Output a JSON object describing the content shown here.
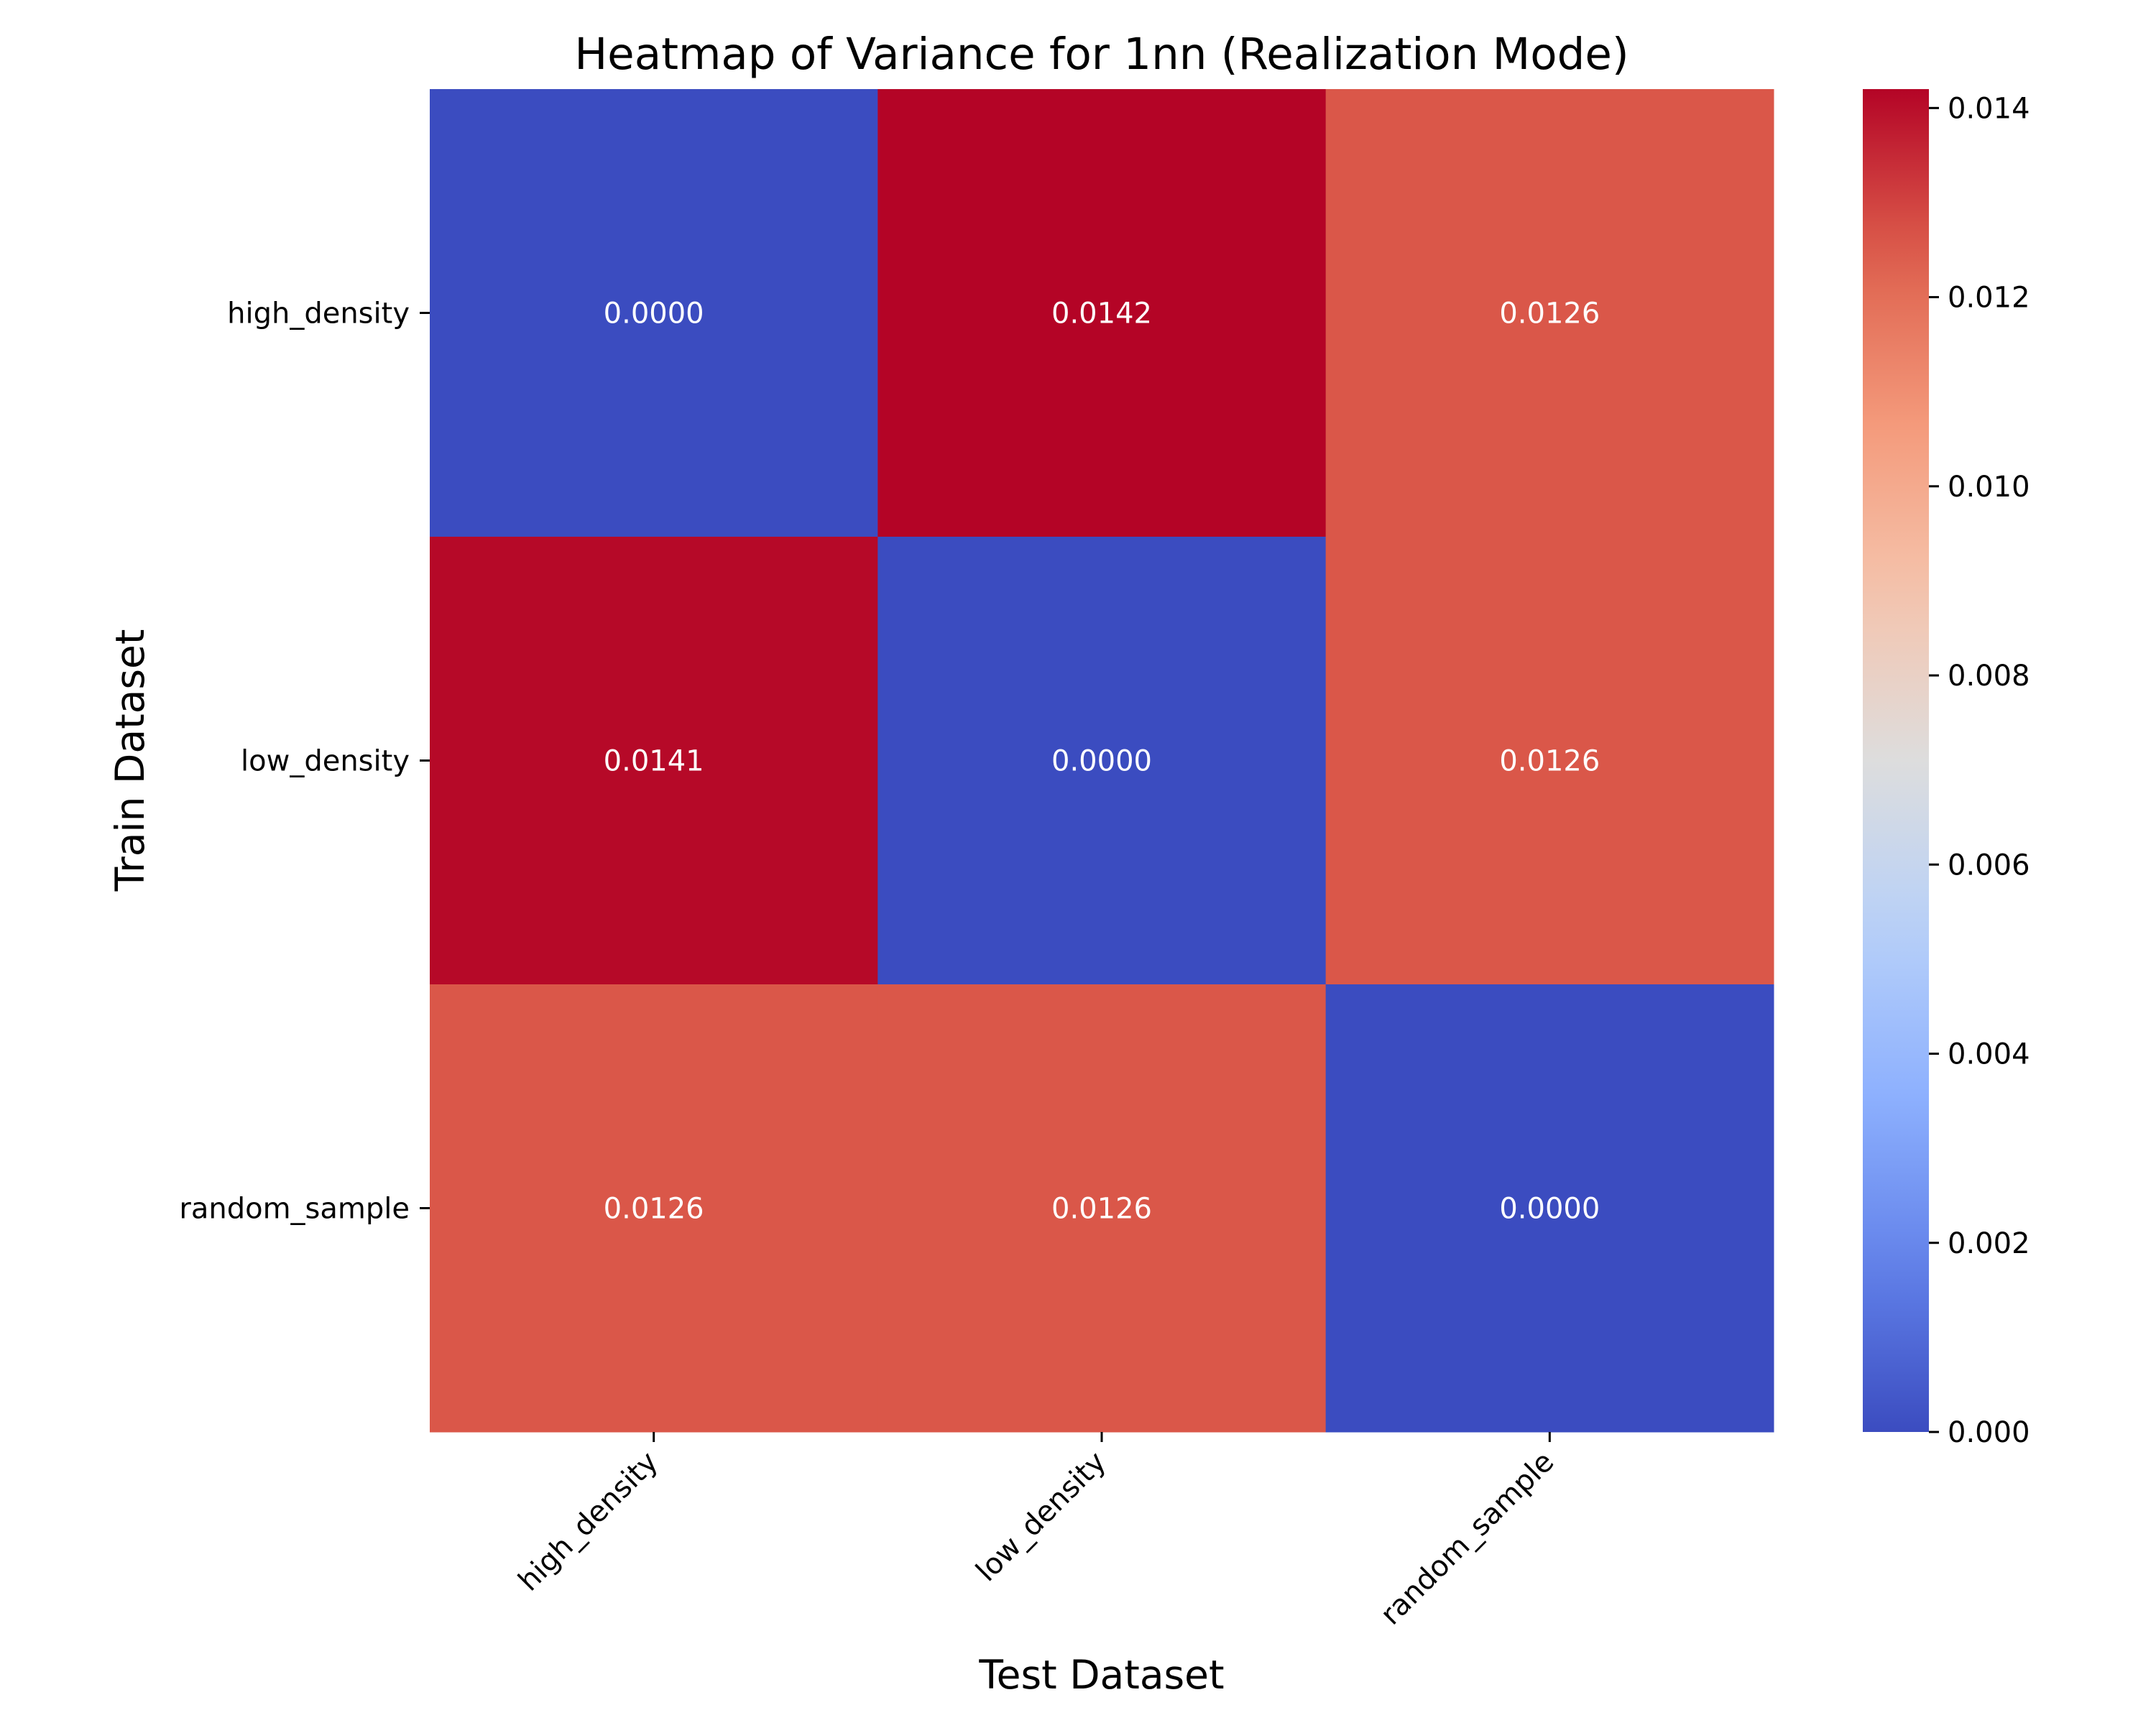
{
  "chart_data": {
    "type": "heatmap",
    "title": "Heatmap of Variance for 1nn (Realization Mode)",
    "xlabel": "Test Dataset",
    "ylabel": "Train Dataset",
    "x_categories": [
      "high_density",
      "low_density",
      "random_sample"
    ],
    "y_categories": [
      "high_density",
      "low_density",
      "random_sample"
    ],
    "values": [
      [
        0.0,
        0.0142,
        0.0126
      ],
      [
        0.0141,
        0.0,
        0.0126
      ],
      [
        0.0126,
        0.0126,
        0.0
      ]
    ],
    "cell_labels": [
      [
        "0.0000",
        "0.0142",
        "0.0126"
      ],
      [
        "0.0141",
        "0.0000",
        "0.0126"
      ],
      [
        "0.0126",
        "0.0126",
        "0.0000"
      ]
    ],
    "colormap": "coolwarm",
    "colorbar": {
      "vmin": 0.0,
      "vmax": 0.0142,
      "ticks": [
        0.0,
        0.002,
        0.004,
        0.006,
        0.008,
        0.01,
        0.012,
        0.014
      ],
      "tick_labels": [
        "0.000",
        "0.002",
        "0.004",
        "0.006",
        "0.008",
        "0.010",
        "0.012",
        "0.014"
      ]
    },
    "colors": {
      "low": "#3b4cc0",
      "mid": "#dddddd",
      "high": "#b40426"
    }
  }
}
